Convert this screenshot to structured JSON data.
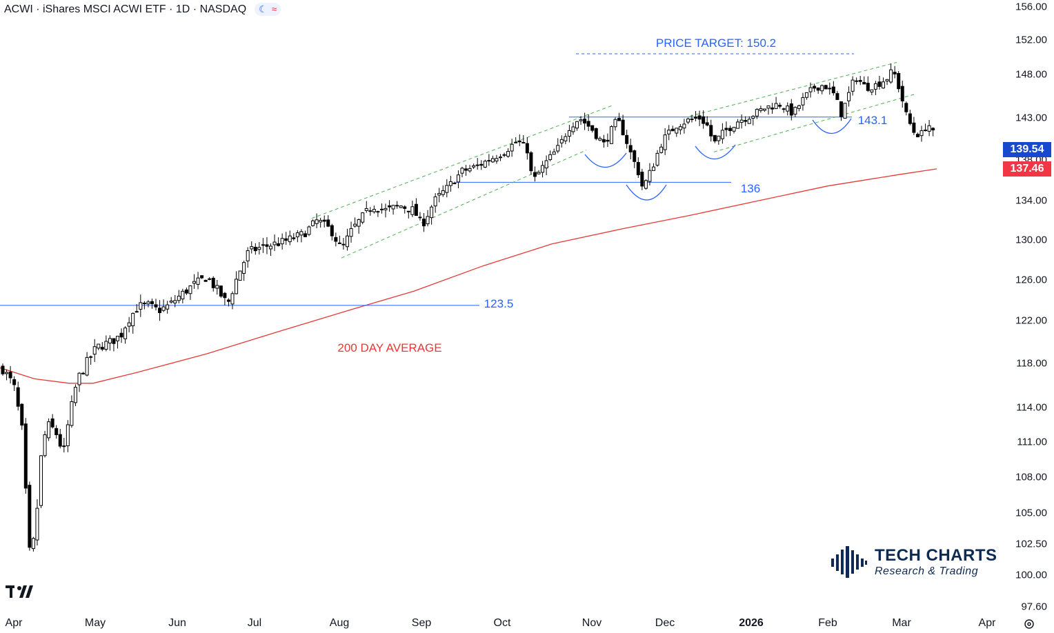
{
  "header": {
    "title": "ACWI · iShares MSCI ACWI ETF · 1D · NASDAQ",
    "pill_moon": "☾",
    "pill_wave": "≈"
  },
  "price_tags": {
    "last": "139.54",
    "ma": "137.46",
    "last_color": "#1848cc",
    "ma_color": "#f23645"
  },
  "annotations": {
    "target": "PRICE TARGET: 150.2",
    "level_143": "143.1",
    "level_136": "136",
    "level_123": "123.5",
    "ma_label": "200 DAY AVERAGE"
  },
  "brand": {
    "name": "TECH CHARTS",
    "tagline": "Research & Trading"
  },
  "chart_data": {
    "type": "candlestick",
    "y_ticks": [
      "156.00",
      "152.00",
      "148.00",
      "143.00",
      "138.00",
      "134.00",
      "130.00",
      "126.00",
      "122.00",
      "118.00",
      "114.00",
      "111.00",
      "108.00",
      "105.00",
      "102.50",
      "100.00",
      "97.60"
    ],
    "x_ticks": [
      "Apr",
      "May",
      "Jun",
      "Jul",
      "Aug",
      "Sep",
      "Oct",
      "Nov",
      "Dec",
      "2026",
      "Feb",
      "Mar",
      "Apr"
    ],
    "last_price": 139.54,
    "ma200_last": 137.46,
    "levels": [
      {
        "name": "price-target",
        "value": 150.2
      },
      {
        "name": "resistance",
        "value": 143.1
      },
      {
        "name": "support",
        "value": 136
      },
      {
        "name": "breakout",
        "value": 123.5
      }
    ],
    "colors": {
      "up": "#ffffff",
      "down": "#000000",
      "ma": "#e53935",
      "levels": "#2962ff",
      "channel": "#4caf50"
    }
  }
}
